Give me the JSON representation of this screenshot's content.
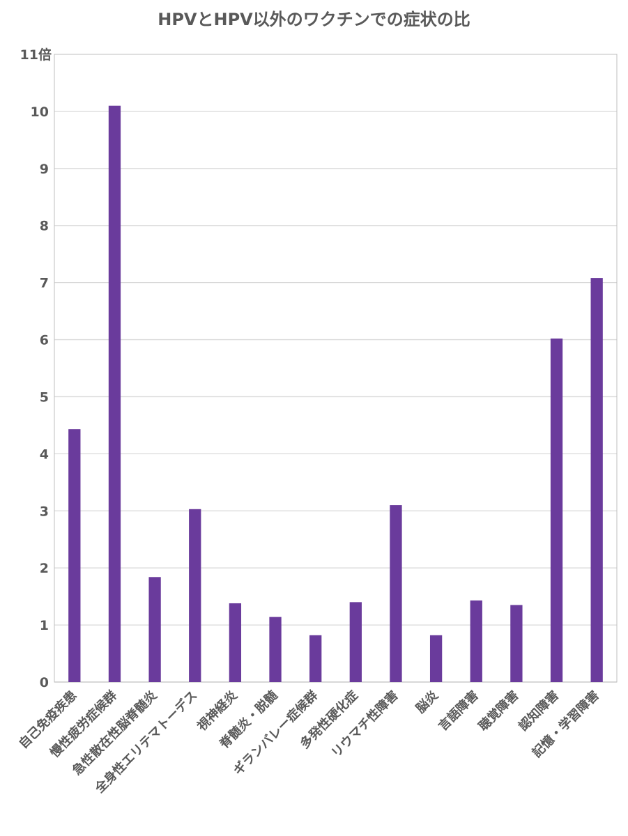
{
  "chart_data": {
    "type": "bar",
    "title": "HPVとHPV以外のワクチンでの症状の比",
    "categories": [
      "自己免疫疾患",
      "慢性疲労症候群",
      "急性散在性脳脊髄炎",
      "全身性エリテマトーデス",
      "視神経炎",
      "脊髄炎・脱髄",
      "ギランバレー症候群",
      "多発性硬化症",
      "リウマチ性障害",
      "脳炎",
      "言語障害",
      "聴覚障害",
      "認知障害",
      "記憶・学習障害"
    ],
    "values": [
      4.43,
      10.1,
      1.84,
      3.03,
      1.38,
      1.14,
      0.82,
      1.4,
      3.1,
      0.82,
      1.43,
      1.35,
      6.02,
      7.08
    ],
    "ylim": [
      0,
      11
    ],
    "yticks": [
      0,
      1,
      2,
      3,
      4,
      5,
      6,
      7,
      8,
      9,
      10
    ],
    "ytick_top_label": "11倍",
    "bar_color": "#6a3b9c",
    "grid": true
  }
}
